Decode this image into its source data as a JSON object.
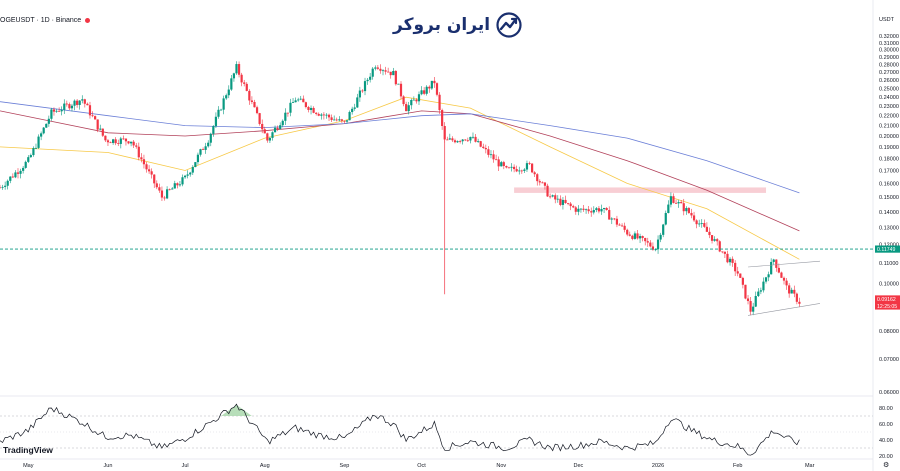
{
  "header": {
    "symbol_line": "OGEUSDT · 1D · Binance",
    "brand_name": "ایران بروکر",
    "currency": "USDT"
  },
  "footer": {
    "platform": "TradingView"
  },
  "chart_data": [
    {
      "type": "candlestick",
      "symbol": "DOGEUSDT",
      "timeframe": "1D",
      "exchange": "Binance",
      "currency": "USDT",
      "y_scale": "log",
      "ylim": [
        0.06,
        0.32
      ],
      "y_ticks": [
        "0.32000",
        "0.31000",
        "0.30000",
        "0.29000",
        "0.28000",
        "0.27000",
        "0.26000",
        "0.25000",
        "0.24000",
        "0.23000",
        "0.22000",
        "0.21000",
        "0.20000",
        "0.19000",
        "0.18000",
        "0.17000",
        "0.16000",
        "0.15000",
        "0.14000",
        "0.13000",
        "0.12000",
        "0.11000",
        "0.10000",
        "0.09000",
        "0.08000",
        "0.07000",
        "0.06000"
      ],
      "x_ticks": [
        "May",
        "Jun",
        "Jul",
        "Aug",
        "Sep",
        "Oct",
        "Nov",
        "Dec",
        "2026",
        "Feb",
        "Mar"
      ],
      "price_labels": [
        {
          "value": "0.11749",
          "meaning": "horizontal level",
          "color": "#089981"
        },
        {
          "value": "0.09162",
          "meaning": "last price",
          "color": "#f23645"
        },
        {
          "value": "12:25:05",
          "meaning": "bar countdown",
          "color": "#f23645"
        }
      ],
      "close_anchors": [
        {
          "date": "2025-04-20",
          "close": 0.157
        },
        {
          "date": "2025-05-01",
          "close": 0.178
        },
        {
          "date": "2025-05-10",
          "close": 0.223
        },
        {
          "date": "2025-05-22",
          "close": 0.238
        },
        {
          "date": "2025-05-31",
          "close": 0.196
        },
        {
          "date": "2025-06-10",
          "close": 0.196
        },
        {
          "date": "2025-06-22",
          "close": 0.15
        },
        {
          "date": "2025-07-01",
          "close": 0.164
        },
        {
          "date": "2025-07-10",
          "close": 0.197
        },
        {
          "date": "2025-07-21",
          "close": 0.276
        },
        {
          "date": "2025-08-02",
          "close": 0.196
        },
        {
          "date": "2025-08-13",
          "close": 0.238
        },
        {
          "date": "2025-08-22",
          "close": 0.223
        },
        {
          "date": "2025-09-01",
          "close": 0.212
        },
        {
          "date": "2025-09-13",
          "close": 0.28
        },
        {
          "date": "2025-09-20",
          "close": 0.268
        },
        {
          "date": "2025-09-25",
          "close": 0.228
        },
        {
          "date": "2025-10-06",
          "close": 0.258
        },
        {
          "date": "2025-10-10",
          "close": 0.195
        },
        {
          "date": "2025-10-20",
          "close": 0.199
        },
        {
          "date": "2025-11-03",
          "close": 0.17
        },
        {
          "date": "2025-11-12",
          "close": 0.174
        },
        {
          "date": "2025-11-20",
          "close": 0.15
        },
        {
          "date": "2025-12-01",
          "close": 0.141
        },
        {
          "date": "2025-12-10",
          "close": 0.142
        },
        {
          "date": "2025-12-20",
          "close": 0.127
        },
        {
          "date": "2025-12-31",
          "close": 0.118
        },
        {
          "date": "2026-01-06",
          "close": 0.15
        },
        {
          "date": "2026-01-14",
          "close": 0.138
        },
        {
          "date": "2026-01-22",
          "close": 0.124
        },
        {
          "date": "2026-02-01",
          "close": 0.105
        },
        {
          "date": "2026-02-06",
          "close": 0.088
        },
        {
          "date": "2026-02-10",
          "close": 0.098
        },
        {
          "date": "2026-02-15",
          "close": 0.112
        },
        {
          "date": "2026-02-20",
          "close": 0.098
        },
        {
          "date": "2026-02-25",
          "close": 0.0916
        }
      ],
      "moving_averages": [
        {
          "color": "#f7c948",
          "points": [
            {
              "date": "2025-04-20",
              "v": 0.19
            },
            {
              "date": "2025-06-01",
              "v": 0.185
            },
            {
              "date": "2025-07-01",
              "v": 0.17
            },
            {
              "date": "2025-08-01",
              "v": 0.198
            },
            {
              "date": "2025-09-01",
              "v": 0.215
            },
            {
              "date": "2025-09-25",
              "v": 0.24
            },
            {
              "date": "2025-10-20",
              "v": 0.228
            },
            {
              "date": "2025-11-20",
              "v": 0.19
            },
            {
              "date": "2025-12-20",
              "v": 0.16
            },
            {
              "date": "2026-01-20",
              "v": 0.142
            },
            {
              "date": "2026-02-25",
              "v": 0.112
            }
          ]
        },
        {
          "color": "#b2415a",
          "points": [
            {
              "date": "2025-04-20",
              "v": 0.225
            },
            {
              "date": "2025-06-01",
              "v": 0.203
            },
            {
              "date": "2025-07-01",
              "v": 0.2
            },
            {
              "date": "2025-08-01",
              "v": 0.205
            },
            {
              "date": "2025-09-01",
              "v": 0.212
            },
            {
              "date": "2025-10-01",
              "v": 0.225
            },
            {
              "date": "2025-10-20",
              "v": 0.222
            },
            {
              "date": "2025-11-20",
              "v": 0.2
            },
            {
              "date": "2025-12-20",
              "v": 0.178
            },
            {
              "date": "2026-01-20",
              "v": 0.155
            },
            {
              "date": "2026-02-25",
              "v": 0.128
            }
          ]
        },
        {
          "color": "#6b7fd7",
          "points": [
            {
              "date": "2025-04-20",
              "v": 0.235
            },
            {
              "date": "2025-06-01",
              "v": 0.22
            },
            {
              "date": "2025-07-01",
              "v": 0.21
            },
            {
              "date": "2025-08-01",
              "v": 0.208
            },
            {
              "date": "2025-09-01",
              "v": 0.212
            },
            {
              "date": "2025-10-01",
              "v": 0.22
            },
            {
              "date": "2025-10-20",
              "v": 0.222
            },
            {
              "date": "2025-11-20",
              "v": 0.21
            },
            {
              "date": "2025-12-20",
              "v": 0.198
            },
            {
              "date": "2026-01-20",
              "v": 0.178
            },
            {
              "date": "2026-02-25",
              "v": 0.153
            }
          ]
        }
      ],
      "annotations": {
        "horizontal_level": {
          "value": 0.11749,
          "color": "#089981",
          "style": "dashed"
        },
        "zone": {
          "from": "2025-11-06",
          "to": "2026-02-12",
          "ylow": 0.153,
          "yhigh": 0.157,
          "color": "#f7c5cd"
        },
        "wedge_upper": [
          {
            "date": "2026-02-05",
            "v": 0.108
          },
          {
            "date": "2026-03-05",
            "v": 0.111
          }
        ],
        "wedge_lower": [
          {
            "date": "2026-02-05",
            "v": 0.086
          },
          {
            "date": "2026-03-05",
            "v": 0.091
          }
        ]
      },
      "colors": {
        "up": "#089981",
        "down": "#f23645"
      }
    },
    {
      "type": "line",
      "name": "",
      "ylim": [
        20,
        90
      ],
      "y_ticks": [
        "80.00",
        "60.00",
        "40.00",
        "20.00"
      ],
      "bands": [
        70,
        30
      ],
      "mid": 50,
      "color": "#131722",
      "points": [
        {
          "date": "2025-04-20",
          "v": 38
        },
        {
          "date": "2025-05-01",
          "v": 52
        },
        {
          "date": "2025-05-10",
          "v": 80
        },
        {
          "date": "2025-05-22",
          "v": 62
        },
        {
          "date": "2025-05-31",
          "v": 44
        },
        {
          "date": "2025-06-10",
          "v": 46
        },
        {
          "date": "2025-06-22",
          "v": 30
        },
        {
          "date": "2025-07-01",
          "v": 42
        },
        {
          "date": "2025-07-10",
          "v": 60
        },
        {
          "date": "2025-07-21",
          "v": 84
        },
        {
          "date": "2025-08-02",
          "v": 38
        },
        {
          "date": "2025-08-13",
          "v": 55
        },
        {
          "date": "2025-08-22",
          "v": 46
        },
        {
          "date": "2025-09-01",
          "v": 42
        },
        {
          "date": "2025-09-13",
          "v": 72
        },
        {
          "date": "2025-09-20",
          "v": 60
        },
        {
          "date": "2025-09-25",
          "v": 40
        },
        {
          "date": "2025-10-06",
          "v": 60
        },
        {
          "date": "2025-10-10",
          "v": 30
        },
        {
          "date": "2025-10-20",
          "v": 38
        },
        {
          "date": "2025-11-03",
          "v": 30
        },
        {
          "date": "2025-11-12",
          "v": 40
        },
        {
          "date": "2025-11-20",
          "v": 30
        },
        {
          "date": "2025-12-01",
          "v": 33
        },
        {
          "date": "2025-12-10",
          "v": 38
        },
        {
          "date": "2025-12-20",
          "v": 30
        },
        {
          "date": "2025-12-31",
          "v": 36
        },
        {
          "date": "2026-01-06",
          "v": 68
        },
        {
          "date": "2026-01-14",
          "v": 52
        },
        {
          "date": "2026-01-22",
          "v": 40
        },
        {
          "date": "2026-02-01",
          "v": 32
        },
        {
          "date": "2026-02-06",
          "v": 22
        },
        {
          "date": "2026-02-10",
          "v": 35
        },
        {
          "date": "2026-02-15",
          "v": 52
        },
        {
          "date": "2026-02-20",
          "v": 42
        },
        {
          "date": "2026-02-25",
          "v": 36
        }
      ],
      "highlight": {
        "from": "2025-07-15",
        "to": "2025-07-27",
        "color": "#a5d6a7"
      }
    }
  ]
}
